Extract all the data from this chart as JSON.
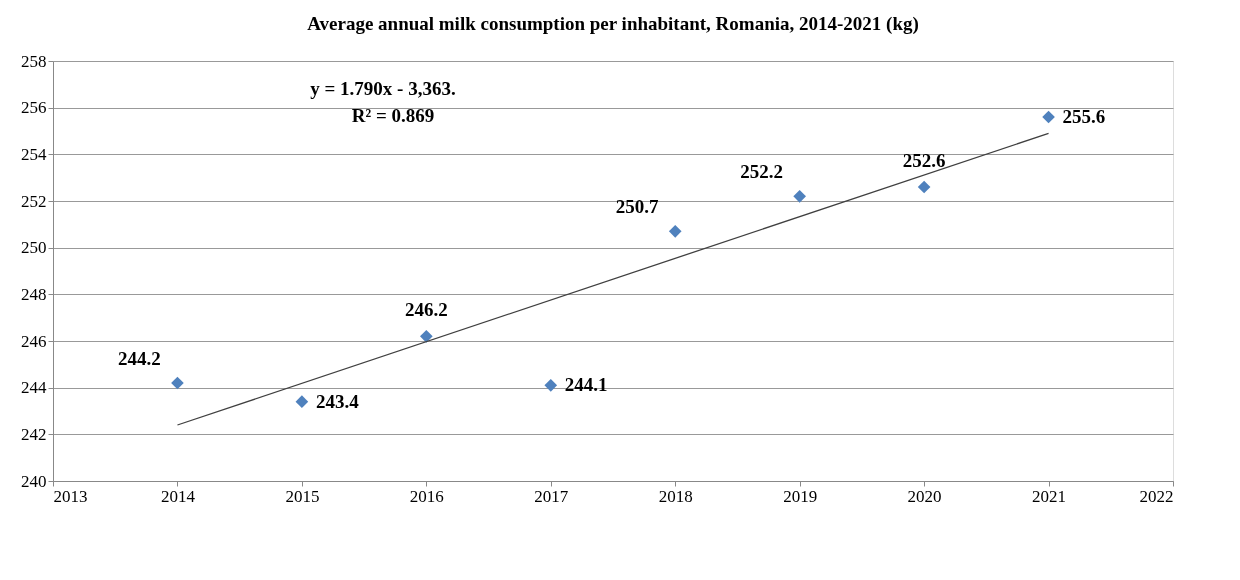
{
  "chart_data": {
    "type": "scatter",
    "title": "Average annual milk consumption per inhabitant, Romania, 2014-2021 (kg)",
    "x": [
      2014,
      2015,
      2016,
      2017,
      2018,
      2019,
      2020,
      2021
    ],
    "series": [
      {
        "color": "#4f81bd",
        "values": [
          244.2,
          243.4,
          246.2,
          244.1,
          250.7,
          252.2,
          252.6,
          255.6
        ],
        "value_labels": [
          "244.2",
          "243.4",
          "246.2",
          "244.1",
          "250.7",
          "252.2",
          "252.6",
          "255.6"
        ],
        "marker": "diamond"
      },
      {
        "type": "line",
        "color": "#404040",
        "x": [
          2014,
          2021
        ],
        "values": [
          242.4,
          254.9
        ],
        "marker": "none"
      }
    ],
    "annotations": [
      "y = 1.790x - 3,363.",
      "R² = 0.869"
    ],
    "xlim": [
      2013,
      2022
    ],
    "xticks": [
      2013,
      2014,
      2015,
      2016,
      2017,
      2018,
      2019,
      2020,
      2021,
      2022
    ],
    "ylim": [
      240,
      258
    ],
    "yticks": [
      240,
      242,
      244,
      246,
      248,
      250,
      252,
      254,
      256,
      258
    ],
    "grid": "y"
  }
}
